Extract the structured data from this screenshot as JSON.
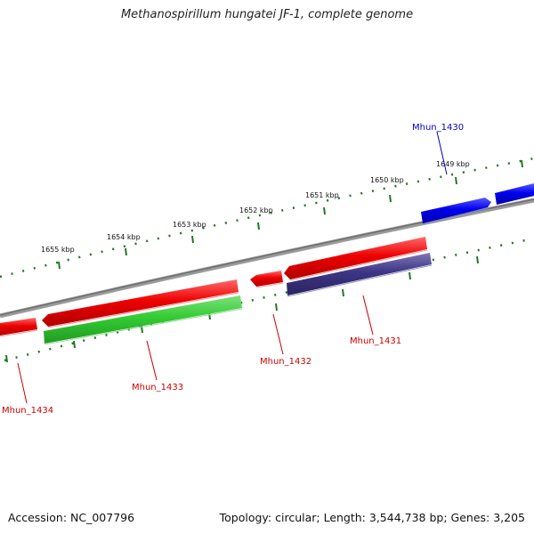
{
  "title": "Methanospirillum hungatei JF-1, complete genome",
  "footer": {
    "accession": "Accession: NC_007796",
    "info": "Topology: circular; Length: 3,544,738 bp; Genes: 3,205"
  },
  "scale_labels": [
    "1655 kbp",
    "1654 kbp",
    "1653 kbp",
    "1652 kbp",
    "1651 kbp",
    "1650 kbp",
    "1649 kbp"
  ],
  "genes": [
    {
      "id": "Mhun_1430",
      "label": "Mhun_1430",
      "color": "#0000dd"
    },
    {
      "id": "Mhun_1431",
      "label": "Mhun_1431",
      "color": "#cc0000"
    },
    {
      "id": "Mhun_1432",
      "label": "Mhun_1432",
      "color": "#cc0000"
    },
    {
      "id": "Mhun_1433",
      "label": "Mhun_1433",
      "color": "#cc0000"
    },
    {
      "id": "Mhun_1434",
      "label": "Mhun_1434",
      "color": "#cc0000"
    }
  ],
  "colors": {
    "backbone": "#808080",
    "ticks": "#227722",
    "forward_gene": "#0000ee",
    "reverse_gene": "#ee0000",
    "rna_gene": "#33cc33",
    "pseudo_gene": "#3d3585"
  }
}
